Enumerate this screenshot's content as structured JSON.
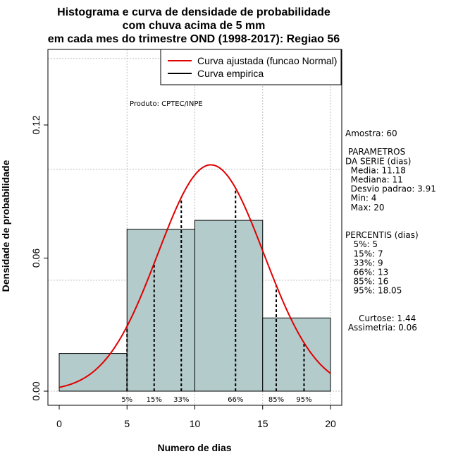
{
  "chart_data": {
    "type": "bar",
    "title": [
      "Histograma e curva de densidade de probabilidade",
      "com chuva acima de 5 mm",
      "em cada mes do trimestre OND (1998-2017): Regiao 56"
    ],
    "xlabel": "Numero de dias",
    "ylabel": "Densidade de probabilidade",
    "xlim": [
      -1,
      21
    ],
    "ylim": [
      -0.007,
      0.15
    ],
    "x_ticks": [
      0,
      5,
      10,
      15,
      20
    ],
    "x_tick_labels": [
      "0",
      "5",
      "10",
      "15",
      "20"
    ],
    "y_ticks": [
      0.0,
      0.06,
      0.12
    ],
    "y_tick_labels": [
      "0.00",
      "0.06",
      "0.12"
    ],
    "grid_x": [
      5,
      10,
      15,
      20
    ],
    "grid_y": [
      0.0,
      0.05,
      0.1,
      0.15
    ],
    "histogram": {
      "bins": [
        {
          "from": 0,
          "to": 5,
          "density": 0.017
        },
        {
          "from": 5,
          "to": 10,
          "density": 0.073
        },
        {
          "from": 10,
          "to": 15,
          "density": 0.077
        },
        {
          "from": 15,
          "to": 20,
          "density": 0.033
        }
      ],
      "fill": "#b4cbcb"
    },
    "normal_curve": {
      "name": "Curva ajustada (funcao Normal)",
      "mean": 11.18,
      "sd": 3.91,
      "color": "#e00000"
    },
    "empirical_curve": {
      "name": "Curva empirica",
      "color": "#000000"
    },
    "percentile_lines": [
      {
        "x": 5,
        "label": "5%"
      },
      {
        "x": 7,
        "label": "15%"
      },
      {
        "x": 9,
        "label": "33%"
      },
      {
        "x": 13,
        "label": "66%"
      },
      {
        "x": 16,
        "label": "85%"
      },
      {
        "x": 18.05,
        "label": "95%"
      }
    ],
    "legend": {
      "position": "top-right",
      "entries": [
        "Curva ajustada (funcao Normal)",
        "Curva empirica"
      ]
    },
    "product_label": "Produto: CPTEC/INPE"
  },
  "stats": {
    "lines": [
      "Amostra: 60",
      "",
      " PARAMETROS",
      "DA SERIE (dias)",
      "  Media: 11.18",
      "  Mediana: 11",
      "  Desvio padrao: 3.91",
      "  Min: 4",
      "  Max: 20",
      "",
      "",
      "PERCENTIS (dias)",
      "   5%: 5",
      "   15%: 7",
      "   33%: 9",
      "   66%: 13",
      "   85%: 16",
      "   95%: 18.05",
      "",
      "",
      "     Curtose: 1.44",
      " Assimetria: 0.06"
    ]
  }
}
